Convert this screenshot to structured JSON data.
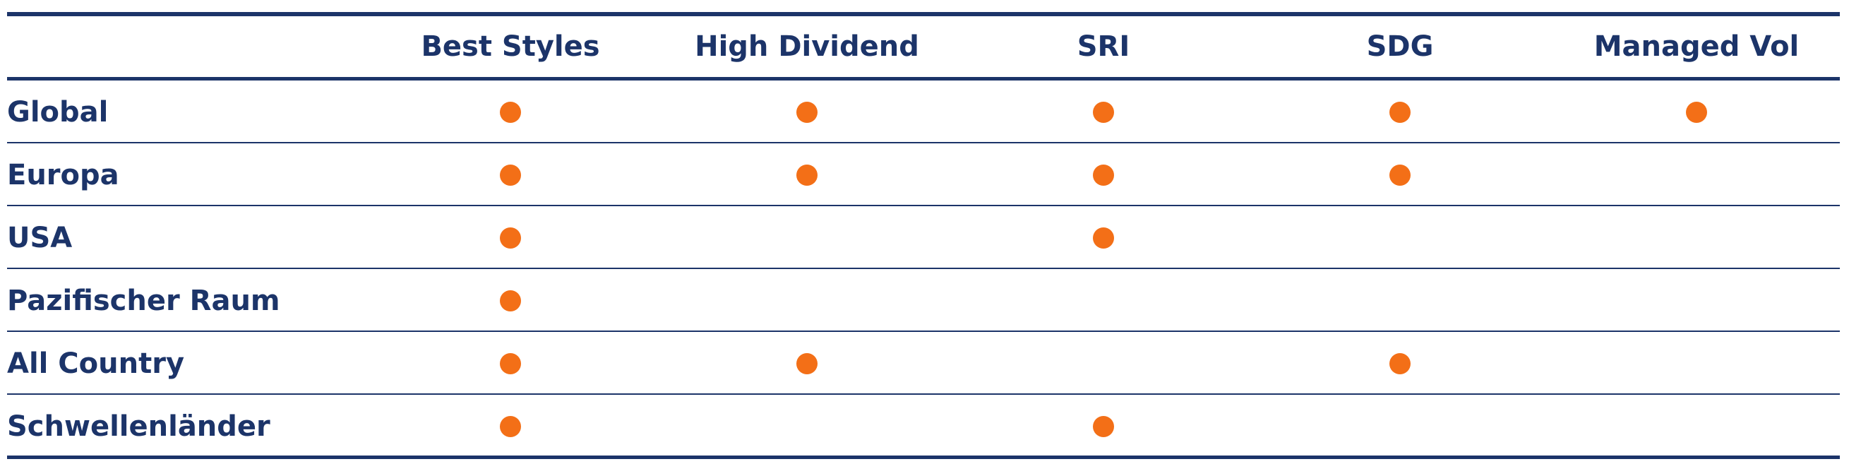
{
  "colors": {
    "text": "#1c3469",
    "lines": "#1c3469",
    "dot": "#f36f17"
  },
  "marker": {
    "icon": "orange-dot-icon",
    "meaning": "available"
  },
  "columns": [
    {
      "label": "Best Styles"
    },
    {
      "label": "High Dividend"
    },
    {
      "label": "SRI"
    },
    {
      "label": "SDG"
    },
    {
      "label": "Managed Vol"
    }
  ],
  "rows": [
    {
      "label": "Global",
      "cells": [
        true,
        true,
        true,
        true,
        true
      ]
    },
    {
      "label": "Europa",
      "cells": [
        true,
        true,
        true,
        true,
        false
      ]
    },
    {
      "label": "USA",
      "cells": [
        true,
        false,
        true,
        false,
        false
      ]
    },
    {
      "label": "Pazifischer Raum",
      "cells": [
        true,
        false,
        false,
        false,
        false
      ]
    },
    {
      "label": "All Country",
      "cells": [
        true,
        true,
        false,
        true,
        false
      ]
    },
    {
      "label": "Schwellenländer",
      "cells": [
        true,
        false,
        true,
        false,
        false
      ]
    }
  ]
}
